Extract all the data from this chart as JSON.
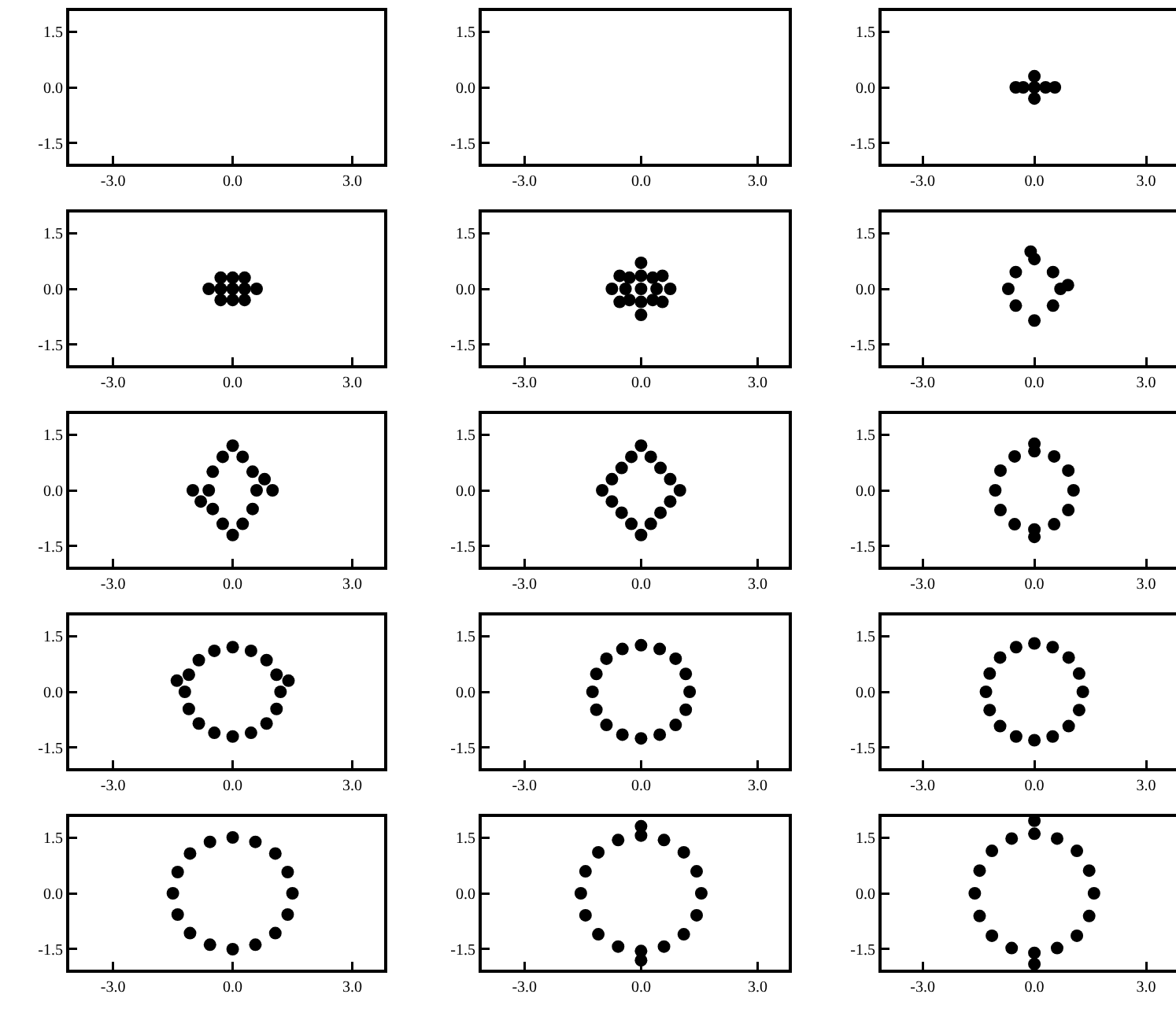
{
  "chart_data": [
    {
      "type": "scatter",
      "xlim": [
        -4.1,
        3.8
      ],
      "ylim": [
        -2.05,
        2.05
      ],
      "xticks": [
        {
          "value": -3,
          "label": "-3.0"
        },
        {
          "value": 0,
          "label": "0.0"
        },
        {
          "value": 3,
          "label": "3.0"
        }
      ],
      "yticks": [
        {
          "value": -1.5,
          "label": "-1.5"
        },
        {
          "value": 0,
          "label": "0.0"
        },
        {
          "value": 1.5,
          "label": "1.5"
        }
      ]
    },
    {
      "type": "scatter",
      "xlim": [
        -4.1,
        3.8
      ],
      "ylim": [
        -2.05,
        2.05
      ],
      "xticks": [
        {
          "value": -3,
          "label": "-3.0"
        },
        {
          "value": 0,
          "label": "0.0"
        },
        {
          "value": 3,
          "label": "3.0"
        }
      ],
      "yticks": [
        {
          "value": -1.5,
          "label": "-1.5"
        },
        {
          "value": 0,
          "label": "0.0"
        },
        {
          "value": 1.5,
          "label": "1.5"
        }
      ]
    },
    {
      "type": "scatter",
      "x": [
        0,
        0.3,
        -0.3,
        0.55,
        -0.5,
        0,
        0
      ],
      "values": [
        0,
        0,
        0,
        0,
        0,
        0.3,
        -0.3
      ],
      "color": "#000000",
      "marker": "circle",
      "xlim": [
        -4.1,
        3.8
      ],
      "ylim": [
        -2.05,
        2.05
      ],
      "xticks": [
        {
          "value": -3,
          "label": "-3.0"
        },
        {
          "value": 0,
          "label": "0.0"
        },
        {
          "value": 3,
          "label": "3.0"
        }
      ],
      "yticks": [
        {
          "value": -1.5,
          "label": "-1.5"
        },
        {
          "value": 0,
          "label": "0.0"
        },
        {
          "value": 1.5,
          "label": "1.5"
        }
      ]
    },
    {
      "type": "scatter",
      "x": [
        0,
        0.3,
        -0.3,
        0,
        0,
        0.3,
        -0.3,
        0.3,
        -0.3,
        0.6,
        -0.6
      ],
      "values": [
        0,
        0,
        0,
        0.3,
        -0.3,
        0.3,
        0.3,
        -0.3,
        -0.3,
        0,
        0
      ],
      "color": "#000000",
      "marker": "circle",
      "xlim": [
        -4.1,
        3.8
      ],
      "ylim": [
        -2.05,
        2.05
      ],
      "xticks": [
        {
          "value": -3,
          "label": "-3.0"
        },
        {
          "value": 0,
          "label": "0.0"
        },
        {
          "value": 3,
          "label": "3.0"
        }
      ],
      "yticks": [
        {
          "value": -1.5,
          "label": "-1.5"
        },
        {
          "value": 0,
          "label": "0.0"
        },
        {
          "value": 1.5,
          "label": "1.5"
        }
      ]
    },
    {
      "type": "scatter",
      "x": [
        0,
        0.4,
        -0.4,
        0,
        0,
        0.3,
        -0.3,
        0.3,
        -0.3,
        0.75,
        -0.75,
        0,
        0,
        0.55,
        -0.55,
        0.55,
        -0.55
      ],
      "values": [
        0,
        0,
        0,
        0.35,
        -0.35,
        0.3,
        0.3,
        -0.3,
        -0.3,
        0,
        0,
        0.7,
        -0.7,
        0.35,
        0.35,
        -0.35,
        -0.35
      ],
      "color": "#000000",
      "marker": "circle",
      "xlim": [
        -4.1,
        3.8
      ],
      "ylim": [
        -2.05,
        2.05
      ],
      "xticks": [
        {
          "value": -3,
          "label": "-3.0"
        },
        {
          "value": 0,
          "label": "0.0"
        },
        {
          "value": 3,
          "label": "3.0"
        }
      ],
      "yticks": [
        {
          "value": -1.5,
          "label": "-1.5"
        },
        {
          "value": 0,
          "label": "0.0"
        },
        {
          "value": 1.5,
          "label": "1.5"
        }
      ]
    },
    {
      "type": "scatter",
      "x": [
        0.7,
        0.5,
        0,
        -0.5,
        -0.7,
        -0.5,
        0,
        0.5,
        0.9,
        -0.1
      ],
      "values": [
        0,
        0.45,
        0.8,
        0.45,
        0,
        -0.45,
        -0.85,
        -0.45,
        0.1,
        1.0
      ],
      "color": "#000000",
      "marker": "circle",
      "xlim": [
        -4.1,
        3.8
      ],
      "ylim": [
        -2.05,
        2.05
      ],
      "xticks": [
        {
          "value": -3,
          "label": "-3.0"
        },
        {
          "value": 0,
          "label": "0.0"
        },
        {
          "value": 3,
          "label": "3.0"
        }
      ],
      "yticks": [
        {
          "value": -1.5,
          "label": "-1.5"
        },
        {
          "value": 0,
          "label": "0.0"
        },
        {
          "value": 1.5,
          "label": "1.5"
        }
      ]
    },
    {
      "type": "scatter",
      "x": [
        0.6,
        0.5,
        0.25,
        0,
        -0.25,
        -0.5,
        -0.6,
        -0.5,
        -0.25,
        0,
        0.25,
        0.5,
        1.0,
        -1.0,
        0.8,
        -0.8
      ],
      "values": [
        0,
        0.5,
        0.9,
        1.2,
        0.9,
        0.5,
        0,
        -0.5,
        -0.9,
        -1.2,
        -0.9,
        -0.5,
        0,
        0,
        0.3,
        -0.3
      ],
      "color": "#000000",
      "marker": "circle",
      "xlim": [
        -4.1,
        3.8
      ],
      "ylim": [
        -2.05,
        2.05
      ],
      "xticks": [
        {
          "value": -3,
          "label": "-3.0"
        },
        {
          "value": 0,
          "label": "0.0"
        },
        {
          "value": 3,
          "label": "3.0"
        }
      ],
      "yticks": [
        {
          "value": -1.5,
          "label": "-1.5"
        },
        {
          "value": 0,
          "label": "0.0"
        },
        {
          "value": 1.5,
          "label": "1.5"
        }
      ]
    },
    {
      "type": "scatter",
      "x": [
        1,
        0.5,
        0,
        -0.5,
        -1,
        -0.5,
        0,
        0.5,
        0.75,
        0.25,
        -0.25,
        -0.75,
        -0.75,
        -0.25,
        0.25,
        0.75
      ],
      "values": [
        0,
        0.6,
        1.2,
        0.6,
        0,
        -0.6,
        -1.2,
        -0.6,
        0.3,
        0.9,
        0.9,
        0.3,
        -0.3,
        -0.9,
        -0.9,
        -0.3
      ],
      "color": "#000000",
      "marker": "circle",
      "xlim": [
        -4.1,
        3.8
      ],
      "ylim": [
        -2.05,
        2.05
      ],
      "xticks": [
        {
          "value": -3,
          "label": "-3.0"
        },
        {
          "value": 0,
          "label": "0.0"
        },
        {
          "value": 3,
          "label": "3.0"
        }
      ],
      "yticks": [
        {
          "value": -1.5,
          "label": "-1.5"
        },
        {
          "value": 0,
          "label": "0.0"
        },
        {
          "value": 1.5,
          "label": "1.5"
        }
      ]
    },
    {
      "type": "scatter",
      "x": [
        1.05,
        0.91,
        0.53,
        0,
        -0.53,
        -0.91,
        -1.05,
        -0.91,
        -0.53,
        0,
        0.53,
        0.91,
        0,
        0
      ],
      "values": [
        0,
        0.53,
        0.91,
        1.05,
        0.91,
        0.53,
        0,
        -0.53,
        -0.91,
        -1.05,
        -0.91,
        -0.53,
        1.25,
        -1.25
      ],
      "color": "#000000",
      "marker": "circle",
      "xlim": [
        -4.1,
        3.8
      ],
      "ylim": [
        -2.05,
        2.05
      ],
      "xticks": [
        {
          "value": -3,
          "label": "-3.0"
        },
        {
          "value": 0,
          "label": "0.0"
        },
        {
          "value": 3,
          "label": "3.0"
        }
      ],
      "yticks": [
        {
          "value": -1.5,
          "label": "-1.5"
        },
        {
          "value": 0,
          "label": "0.0"
        },
        {
          "value": 1.5,
          "label": "1.5"
        }
      ]
    },
    {
      "type": "scatter",
      "x": [
        1.2,
        1.1,
        0.85,
        0.46,
        0,
        -0.46,
        -0.85,
        -1.1,
        -1.2,
        -1.1,
        -0.85,
        -0.46,
        0,
        0.46,
        0.85,
        1.1,
        1.4,
        -1.4
      ],
      "values": [
        0,
        0.46,
        0.85,
        1.1,
        1.2,
        1.1,
        0.85,
        0.46,
        0,
        -0.46,
        -0.85,
        -1.1,
        -1.2,
        -1.1,
        -0.85,
        -0.46,
        0.3,
        0.3
      ],
      "color": "#000000",
      "marker": "circle",
      "xlim": [
        -4.1,
        3.8
      ],
      "ylim": [
        -2.05,
        2.05
      ],
      "xticks": [
        {
          "value": -3,
          "label": "-3.0"
        },
        {
          "value": 0,
          "label": "0.0"
        },
        {
          "value": 3,
          "label": "3.0"
        }
      ],
      "yticks": [
        {
          "value": -1.5,
          "label": "-1.5"
        },
        {
          "value": 0,
          "label": "0.0"
        },
        {
          "value": 1.5,
          "label": "1.5"
        }
      ]
    },
    {
      "type": "scatter",
      "x": [
        1.25,
        1.15,
        0.89,
        0.48,
        0,
        -0.48,
        -0.89,
        -1.15,
        -1.25,
        -1.15,
        -0.89,
        -0.48,
        0,
        0.48,
        0.89,
        1.15
      ],
      "values": [
        0,
        0.48,
        0.89,
        1.15,
        1.25,
        1.15,
        0.89,
        0.48,
        0,
        -0.48,
        -0.89,
        -1.15,
        -1.25,
        -1.15,
        -0.89,
        -0.48
      ],
      "color": "#000000",
      "marker": "circle",
      "xlim": [
        -4.1,
        3.8
      ],
      "ylim": [
        -2.05,
        2.05
      ],
      "xticks": [
        {
          "value": -3,
          "label": "-3.0"
        },
        {
          "value": 0,
          "label": "0.0"
        },
        {
          "value": 3,
          "label": "3.0"
        }
      ],
      "yticks": [
        {
          "value": -1.5,
          "label": "-1.5"
        },
        {
          "value": 0,
          "label": "0.0"
        },
        {
          "value": 1.5,
          "label": "1.5"
        }
      ]
    },
    {
      "type": "scatter",
      "x": [
        1.3,
        1.2,
        0.92,
        0.49,
        0,
        -0.49,
        -0.92,
        -1.2,
        -1.3,
        -1.2,
        -0.92,
        -0.49,
        0,
        0.49,
        0.92,
        1.2
      ],
      "values": [
        0,
        0.49,
        0.92,
        1.2,
        1.3,
        1.2,
        0.92,
        0.49,
        0,
        -0.49,
        -0.92,
        -1.2,
        -1.3,
        -1.2,
        -0.92,
        -0.49
      ],
      "color": "#000000",
      "marker": "circle",
      "xlim": [
        -4.1,
        3.8
      ],
      "ylim": [
        -2.05,
        2.05
      ],
      "xticks": [
        {
          "value": -3,
          "label": "-3.0"
        },
        {
          "value": 0,
          "label": "0.0"
        },
        {
          "value": 3,
          "label": "3.0"
        }
      ],
      "yticks": [
        {
          "value": -1.5,
          "label": "-1.5"
        },
        {
          "value": 0,
          "label": "0.0"
        },
        {
          "value": 1.5,
          "label": "1.5"
        }
      ]
    },
    {
      "type": "scatter",
      "x": [
        1.5,
        1.38,
        1.07,
        0.57,
        0,
        -0.57,
        -1.07,
        -1.38,
        -1.5,
        -1.38,
        -1.07,
        -0.57,
        0,
        0.57,
        1.07,
        1.38
      ],
      "values": [
        0,
        0.57,
        1.07,
        1.38,
        1.5,
        1.38,
        1.07,
        0.57,
        0,
        -0.57,
        -1.07,
        -1.38,
        -1.5,
        -1.38,
        -1.07,
        -0.57
      ],
      "color": "#000000",
      "marker": "circle",
      "xlim": [
        -4.1,
        3.8
      ],
      "ylim": [
        -2.05,
        2.05
      ],
      "xticks": [
        {
          "value": -3,
          "label": "-3.0"
        },
        {
          "value": 0,
          "label": "0.0"
        },
        {
          "value": 3,
          "label": "3.0"
        }
      ],
      "yticks": [
        {
          "value": -1.5,
          "label": "-1.5"
        },
        {
          "value": 0,
          "label": "0.0"
        },
        {
          "value": 1.5,
          "label": "1.5"
        }
      ]
    },
    {
      "type": "scatter",
      "x": [
        1.55,
        1.43,
        1.1,
        0.59,
        0,
        -0.59,
        -1.1,
        -1.43,
        -1.55,
        -1.43,
        -1.1,
        -0.59,
        0,
        0.59,
        1.1,
        1.43,
        0,
        0
      ],
      "values": [
        0,
        0.59,
        1.1,
        1.43,
        1.55,
        1.43,
        1.1,
        0.59,
        0,
        -0.59,
        -1.1,
        -1.43,
        -1.55,
        -1.43,
        -1.1,
        -0.59,
        1.8,
        -1.8
      ],
      "color": "#000000",
      "marker": "circle",
      "xlim": [
        -4.1,
        3.8
      ],
      "ylim": [
        -2.05,
        2.05
      ],
      "xticks": [
        {
          "value": -3,
          "label": "-3.0"
        },
        {
          "value": 0,
          "label": "0.0"
        },
        {
          "value": 3,
          "label": "3.0"
        }
      ],
      "yticks": [
        {
          "value": -1.5,
          "label": "-1.5"
        },
        {
          "value": 0,
          "label": "0.0"
        },
        {
          "value": 1.5,
          "label": "1.5"
        }
      ]
    },
    {
      "type": "scatter",
      "x": [
        1.6,
        1.47,
        1.14,
        0.61,
        0,
        -0.61,
        -1.14,
        -1.47,
        -1.6,
        -1.47,
        -1.14,
        -0.61,
        0,
        0.61,
        1.14,
        1.47,
        0,
        0
      ],
      "values": [
        0,
        0.61,
        1.14,
        1.47,
        1.6,
        1.47,
        1.14,
        0.61,
        0,
        -0.61,
        -1.14,
        -1.47,
        -1.6,
        -1.47,
        -1.14,
        -0.61,
        1.95,
        -1.9
      ],
      "color": "#000000",
      "marker": "circle",
      "xlim": [
        -4.1,
        3.8
      ],
      "ylim": [
        -2.05,
        2.05
      ],
      "xticks": [
        {
          "value": -3,
          "label": "-3.0"
        },
        {
          "value": 0,
          "label": "0.0"
        },
        {
          "value": 3,
          "label": "3.0"
        }
      ],
      "yticks": [
        {
          "value": -1.5,
          "label": "-1.5"
        },
        {
          "value": 0,
          "label": "0.0"
        },
        {
          "value": 1.5,
          "label": "1.5"
        }
      ]
    }
  ]
}
